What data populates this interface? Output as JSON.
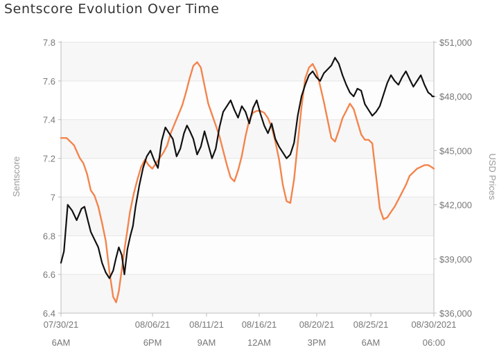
{
  "chart_data": {
    "type": "line",
    "title": "Sentscore Evolution Over Time",
    "ylabel": "Sentscore",
    "y2label": "USD Prices",
    "ylim": [
      6.4,
      7.8
    ],
    "y2lim": [
      36000,
      51000
    ],
    "yticks": [
      "7.8",
      "7.6",
      "7.4",
      "7.2",
      "7",
      "6.8",
      "6.6",
      "6.4"
    ],
    "y2ticks": [
      "$51,000",
      "$48,000",
      "$45,000",
      "$42,000",
      "$39,000",
      "$36,000"
    ],
    "xticks": [
      {
        "pos": 0.0,
        "line1": "07/30/21",
        "line2": "6AM"
      },
      {
        "pos": 0.2455,
        "line1": "08/06/21",
        "line2": "6PM"
      },
      {
        "pos": 0.3903,
        "line1": "08/11/21",
        "line2": "9AM"
      },
      {
        "pos": 0.5316,
        "line1": "08/16/21",
        "line2": "12AM"
      },
      {
        "pos": 0.6859,
        "line1": "08/20/21",
        "line2": "3PM"
      },
      {
        "pos": 0.8309,
        "line1": "08/25/21",
        "line2": "6AM"
      },
      {
        "pos": 1.0,
        "line1": "08/30/2021",
        "line2": "06:00"
      }
    ],
    "grid": true,
    "series": [
      {
        "name": "Sentscore",
        "axis": "left",
        "color": "#111111",
        "x": [
          0.0,
          0.008,
          0.018,
          0.03,
          0.042,
          0.055,
          0.063,
          0.072,
          0.08,
          0.09,
          0.1,
          0.11,
          0.12,
          0.13,
          0.14,
          0.147,
          0.155,
          0.163,
          0.17,
          0.178,
          0.186,
          0.193,
          0.2,
          0.21,
          0.22,
          0.23,
          0.24,
          0.25,
          0.26,
          0.27,
          0.28,
          0.29,
          0.3,
          0.31,
          0.32,
          0.33,
          0.338,
          0.346,
          0.355,
          0.365,
          0.375,
          0.385,
          0.395,
          0.405,
          0.415,
          0.425,
          0.435,
          0.445,
          0.455,
          0.465,
          0.475,
          0.485,
          0.495,
          0.505,
          0.515,
          0.525,
          0.535,
          0.545,
          0.555,
          0.565,
          0.575,
          0.585,
          0.595,
          0.605,
          0.615,
          0.625,
          0.635,
          0.645,
          0.655,
          0.665,
          0.675,
          0.685,
          0.695,
          0.705,
          0.715,
          0.725,
          0.735,
          0.745,
          0.755,
          0.765,
          0.775,
          0.785,
          0.795,
          0.805,
          0.815,
          0.825,
          0.835,
          0.845,
          0.855,
          0.865,
          0.875,
          0.885,
          0.895,
          0.905,
          0.915,
          0.925,
          0.935,
          0.945,
          0.955,
          0.965,
          0.975,
          0.985,
          0.992,
          0.996,
          1.0
        ],
        "values": [
          6.66,
          6.72,
          6.96,
          6.93,
          6.88,
          6.94,
          6.95,
          6.88,
          6.82,
          6.78,
          6.74,
          6.66,
          6.61,
          6.58,
          6.62,
          6.68,
          6.74,
          6.7,
          6.6,
          6.73,
          6.8,
          6.85,
          6.95,
          7.06,
          7.15,
          7.21,
          7.24,
          7.19,
          7.15,
          7.29,
          7.36,
          7.33,
          7.3,
          7.21,
          7.25,
          7.33,
          7.37,
          7.34,
          7.3,
          7.22,
          7.26,
          7.34,
          7.27,
          7.2,
          7.25,
          7.36,
          7.44,
          7.47,
          7.5,
          7.45,
          7.41,
          7.47,
          7.44,
          7.38,
          7.46,
          7.5,
          7.43,
          7.37,
          7.33,
          7.38,
          7.3,
          7.26,
          7.23,
          7.2,
          7.22,
          7.28,
          7.42,
          7.52,
          7.58,
          7.63,
          7.65,
          7.62,
          7.6,
          7.64,
          7.66,
          7.68,
          7.72,
          7.69,
          7.63,
          7.58,
          7.54,
          7.52,
          7.56,
          7.55,
          7.48,
          7.45,
          7.42,
          7.44,
          7.47,
          7.53,
          7.59,
          7.63,
          7.6,
          7.58,
          7.62,
          7.65,
          7.61,
          7.57,
          7.6,
          7.63,
          7.58,
          7.54,
          7.53,
          7.52,
          7.52
        ]
      },
      {
        "name": "USD Prices",
        "axis": "right",
        "color": "#f4844c",
        "x": [
          0.0,
          0.015,
          0.035,
          0.05,
          0.06,
          0.07,
          0.08,
          0.09,
          0.1,
          0.11,
          0.12,
          0.13,
          0.14,
          0.148,
          0.155,
          0.163,
          0.17,
          0.178,
          0.185,
          0.195,
          0.205,
          0.215,
          0.225,
          0.235,
          0.245,
          0.255,
          0.265,
          0.275,
          0.285,
          0.295,
          0.305,
          0.315,
          0.325,
          0.335,
          0.345,
          0.355,
          0.365,
          0.375,
          0.385,
          0.395,
          0.405,
          0.415,
          0.425,
          0.435,
          0.445,
          0.455,
          0.465,
          0.475,
          0.485,
          0.495,
          0.505,
          0.515,
          0.525,
          0.535,
          0.545,
          0.555,
          0.565,
          0.575,
          0.585,
          0.595,
          0.605,
          0.615,
          0.625,
          0.635,
          0.645,
          0.655,
          0.665,
          0.675,
          0.685,
          0.695,
          0.705,
          0.715,
          0.725,
          0.735,
          0.745,
          0.755,
          0.765,
          0.775,
          0.785,
          0.795,
          0.805,
          0.815,
          0.825,
          0.835,
          0.845,
          0.855,
          0.865,
          0.875,
          0.885,
          0.895,
          0.905,
          0.915,
          0.925,
          0.935,
          0.945,
          0.955,
          0.965,
          0.975,
          0.985,
          0.993,
          1.0
        ],
        "values": [
          45.7,
          45.7,
          45.3,
          44.6,
          44.3,
          43.7,
          42.8,
          42.5,
          41.9,
          41.0,
          40.0,
          38.3,
          36.9,
          36.6,
          37.2,
          38.4,
          39.5,
          40.6,
          41.6,
          42.6,
          43.4,
          44.1,
          44.5,
          44.2,
          44.0,
          44.3,
          44.6,
          44.9,
          45.3,
          46.0,
          46.5,
          47.0,
          47.5,
          48.2,
          49.0,
          49.7,
          49.9,
          49.6,
          48.6,
          47.6,
          47.0,
          46.4,
          45.8,
          45.0,
          44.2,
          43.5,
          43.3,
          43.9,
          44.7,
          45.8,
          46.7,
          47.1,
          47.2,
          47.2,
          47.1,
          46.8,
          46.3,
          45.5,
          44.5,
          43.1,
          42.2,
          42.1,
          43.4,
          45.4,
          47.4,
          49.0,
          49.6,
          49.8,
          49.4,
          48.6,
          47.7,
          46.7,
          45.7,
          45.5,
          46.1,
          46.8,
          47.2,
          47.6,
          47.3,
          46.6,
          45.9,
          45.6,
          45.6,
          45.4,
          43.6,
          41.8,
          41.2,
          41.3,
          41.6,
          41.9,
          42.3,
          42.7,
          43.1,
          43.6,
          43.8,
          44.0,
          44.1,
          44.2,
          44.2,
          44.1,
          44.0
        ]
      }
    ]
  }
}
